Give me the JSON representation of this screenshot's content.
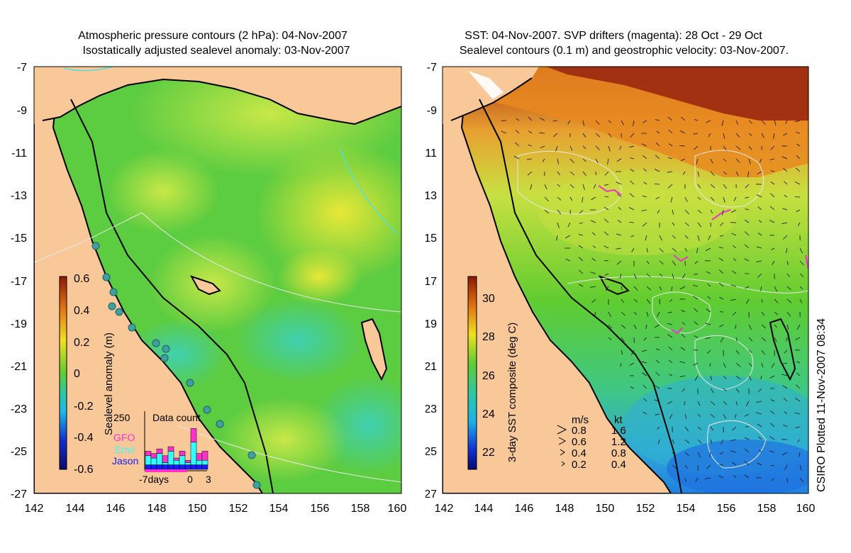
{
  "left_panel": {
    "title_line1": "Atmospheric pressure contours (2 hPa): 04-Nov-2007",
    "title_line2": "Isostatically adjusted sealevel anomaly: 03-Nov-2007",
    "y_ticks": [
      "-7",
      "-9",
      "-11",
      "-13",
      "-15",
      "-17",
      "-19",
      "-21",
      "-23",
      "-25",
      "-27"
    ],
    "x_ticks": [
      "142",
      "144",
      "146",
      "148",
      "150",
      "152",
      "154",
      "156",
      "158",
      "160"
    ],
    "colorbar": {
      "label": "Sealevel anomaly (m)",
      "ticks": [
        "0.6",
        "0.4",
        "0.2",
        "0",
        "-0.2",
        "-0.4",
        "-0.6"
      ],
      "range": [
        -0.6,
        0.6
      ]
    },
    "histogram": {
      "title": "Data count",
      "y_max_label": "250",
      "x_labels": [
        "-7days",
        "0",
        "3"
      ],
      "legend": [
        {
          "name": "GFO",
          "color": "#ff33cc"
        },
        {
          "name": "Envi",
          "color": "#33ffff"
        },
        {
          "name": "Jason",
          "color": "#1a1aff"
        }
      ],
      "bars": [
        {
          "jason": 20,
          "envi": 40,
          "gfo": 20
        },
        {
          "jason": 20,
          "envi": 30,
          "gfo": 20
        },
        {
          "jason": 20,
          "envi": 50,
          "gfo": 20
        },
        {
          "jason": 20,
          "envi": 10,
          "gfo": 30
        },
        {
          "jason": 20,
          "envi": 60,
          "gfo": 20
        },
        {
          "jason": 20,
          "envi": 20,
          "gfo": 10
        },
        {
          "jason": 20,
          "envi": 40,
          "gfo": 20
        },
        {
          "jason": 20,
          "envi": 10,
          "gfo": 10
        },
        {
          "jason": 20,
          "envi": 100,
          "gfo": 60
        },
        {
          "jason": 20,
          "envi": 20,
          "gfo": 30
        },
        {
          "jason": 20,
          "envi": 20,
          "gfo": 40
        }
      ]
    }
  },
  "right_panel": {
    "title_line1": "SST: 04-Nov-2007. SVP drifters (magenta): 28 Oct - 29 Oct",
    "title_line2": "Sealevel contours (0.1 m) and geostrophic velocity: 03-Nov-2007.",
    "y_ticks": [
      "-7",
      "-9",
      "-11",
      "-13",
      "-15",
      "-17",
      "-19",
      "-21",
      "-23",
      "-25",
      "-27"
    ],
    "x_ticks": [
      "142",
      "144",
      "146",
      "148",
      "150",
      "152",
      "154",
      "156",
      "158",
      "160"
    ],
    "colorbar": {
      "label": "3-day SST composite (deg C)",
      "ticks": [
        "30",
        "28",
        "26",
        "24",
        "22"
      ],
      "range": [
        21,
        31
      ]
    },
    "velocity_legend": {
      "header_ms": "m/s",
      "header_kt": "kt",
      "rows": [
        {
          "ms": "0.8",
          "kt": "1.6"
        },
        {
          "ms": "0.6",
          "kt": "1.2"
        },
        {
          "ms": "0.4",
          "kt": "0.8"
        },
        {
          "ms": "0.2",
          "kt": "0.4"
        }
      ]
    }
  },
  "credit": "CSIRO Plotted 11-Nov-2007 08:34",
  "colors": {
    "land": "#f8c898",
    "coast": "#000000",
    "contour": "#e8e8e8",
    "pressure_contour": "#55dddd",
    "drifter": "#ee33cc"
  }
}
